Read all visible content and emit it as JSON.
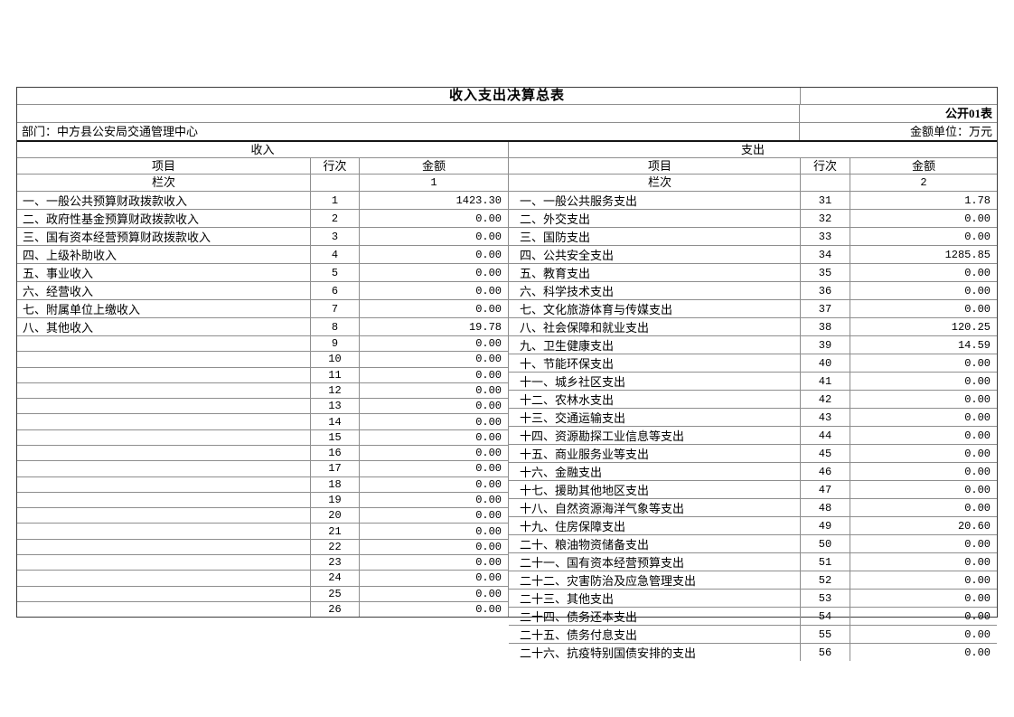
{
  "header": {
    "title": "收入支出决算总表",
    "form_no": "公开01表",
    "department": "部门：中方县公安局交通管理中心",
    "unit_label": "金额单位：万元"
  },
  "columns": {
    "item": "项目",
    "line": "行次",
    "amount": "金额",
    "lanci": "栏次"
  },
  "revenue": {
    "section_title": "收入",
    "column_no": "1",
    "rows": [
      {
        "item": "一、一般公共预算财政拨款收入",
        "line": "1",
        "amount": "1423.30"
      },
      {
        "item": "二、政府性基金预算财政拨款收入",
        "line": "2",
        "amount": "0.00"
      },
      {
        "item": "三、国有资本经营预算财政拨款收入",
        "line": "3",
        "amount": "0.00"
      },
      {
        "item": "四、上级补助收入",
        "line": "4",
        "amount": "0.00"
      },
      {
        "item": "五、事业收入",
        "line": "5",
        "amount": "0.00"
      },
      {
        "item": "六、经营收入",
        "line": "6",
        "amount": "0.00"
      },
      {
        "item": "七、附属单位上缴收入",
        "line": "7",
        "amount": "0.00"
      },
      {
        "item": "八、其他收入",
        "line": "8",
        "amount": "19.78"
      },
      {
        "item": "",
        "line": "9",
        "amount": "0.00"
      },
      {
        "item": "",
        "line": "10",
        "amount": "0.00"
      },
      {
        "item": "",
        "line": "11",
        "amount": "0.00"
      },
      {
        "item": "",
        "line": "12",
        "amount": "0.00"
      },
      {
        "item": "",
        "line": "13",
        "amount": "0.00"
      },
      {
        "item": "",
        "line": "14",
        "amount": "0.00"
      },
      {
        "item": "",
        "line": "15",
        "amount": "0.00"
      },
      {
        "item": "",
        "line": "16",
        "amount": "0.00"
      },
      {
        "item": "",
        "line": "17",
        "amount": "0.00"
      },
      {
        "item": "",
        "line": "18",
        "amount": "0.00"
      },
      {
        "item": "",
        "line": "19",
        "amount": "0.00"
      },
      {
        "item": "",
        "line": "20",
        "amount": "0.00"
      },
      {
        "item": "",
        "line": "21",
        "amount": "0.00"
      },
      {
        "item": "",
        "line": "22",
        "amount": "0.00"
      },
      {
        "item": "",
        "line": "23",
        "amount": "0.00"
      },
      {
        "item": "",
        "line": "24",
        "amount": "0.00"
      },
      {
        "item": "",
        "line": "25",
        "amount": "0.00"
      },
      {
        "item": "",
        "line": "26",
        "amount": "0.00"
      }
    ]
  },
  "expenditure": {
    "section_title": "支出",
    "column_no": "2",
    "rows": [
      {
        "item": "一、一般公共服务支出",
        "line": "31",
        "amount": "1.78"
      },
      {
        "item": "二、外交支出",
        "line": "32",
        "amount": "0.00"
      },
      {
        "item": "三、国防支出",
        "line": "33",
        "amount": "0.00"
      },
      {
        "item": "四、公共安全支出",
        "line": "34",
        "amount": "1285.85"
      },
      {
        "item": "五、教育支出",
        "line": "35",
        "amount": "0.00"
      },
      {
        "item": "六、科学技术支出",
        "line": "36",
        "amount": "0.00"
      },
      {
        "item": "七、文化旅游体育与传媒支出",
        "line": "37",
        "amount": "0.00"
      },
      {
        "item": "八、社会保障和就业支出",
        "line": "38",
        "amount": "120.25"
      },
      {
        "item": "九、卫生健康支出",
        "line": "39",
        "amount": "14.59"
      },
      {
        "item": "十、节能环保支出",
        "line": "40",
        "amount": "0.00"
      },
      {
        "item": "十一、城乡社区支出",
        "line": "41",
        "amount": "0.00"
      },
      {
        "item": "十二、农林水支出",
        "line": "42",
        "amount": "0.00"
      },
      {
        "item": "十三、交通运输支出",
        "line": "43",
        "amount": "0.00"
      },
      {
        "item": "十四、资源勘探工业信息等支出",
        "line": "44",
        "amount": "0.00"
      },
      {
        "item": "十五、商业服务业等支出",
        "line": "45",
        "amount": "0.00"
      },
      {
        "item": "十六、金融支出",
        "line": "46",
        "amount": "0.00"
      },
      {
        "item": "十七、援助其他地区支出",
        "line": "47",
        "amount": "0.00"
      },
      {
        "item": "十八、自然资源海洋气象等支出",
        "line": "48",
        "amount": "0.00"
      },
      {
        "item": "十九、住房保障支出",
        "line": "49",
        "amount": "20.60"
      },
      {
        "item": "二十、粮油物资储备支出",
        "line": "50",
        "amount": "0.00"
      },
      {
        "item": "二十一、国有资本经营预算支出",
        "line": "51",
        "amount": "0.00"
      },
      {
        "item": "二十二、灾害防治及应急管理支出",
        "line": "52",
        "amount": "0.00"
      },
      {
        "item": "二十三、其他支出",
        "line": "53",
        "amount": "0.00"
      },
      {
        "item": "二十四、债务还本支出",
        "line": "54",
        "amount": "0.00"
      },
      {
        "item": "二十五、债务付息支出",
        "line": "55",
        "amount": "0.00"
      },
      {
        "item": "二十六、抗疫特别国债安排的支出",
        "line": "56",
        "amount": "0.00"
      }
    ]
  },
  "colors": {
    "thin_border": "#8e8e8e",
    "frame_border": "#3c3c3c",
    "thick_border": "#141414"
  }
}
